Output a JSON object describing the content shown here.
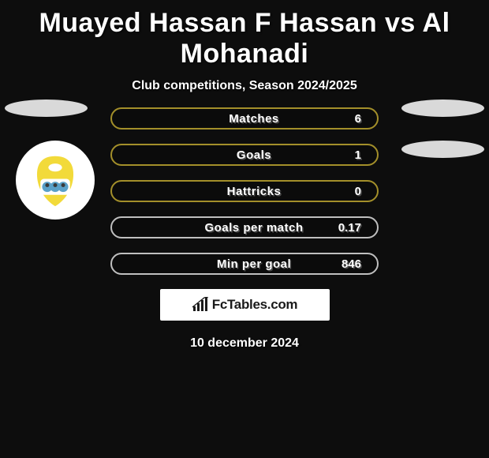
{
  "title": "Muayed Hassan F Hassan vs Al Mohanadi",
  "subtitle": "Club competitions, Season 2024/2025",
  "stats": [
    {
      "label": "Matches",
      "value": "6",
      "border_color": "#a38f2a"
    },
    {
      "label": "Goals",
      "value": "1",
      "border_color": "#a38f2a"
    },
    {
      "label": "Hattricks",
      "value": "0",
      "border_color": "#a38f2a"
    },
    {
      "label": "Goals per match",
      "value": "0.17",
      "border_color": "#bfbfbf"
    },
    {
      "label": "Min per goal",
      "value": "846",
      "border_color": "#bfbfbf"
    }
  ],
  "brand": "FcTables.com",
  "date_text": "10 december 2024",
  "colors": {
    "page_bg": "#0d0d0d",
    "ellipse_fill": "#d9d9d9",
    "badge_bg": "#ffffff",
    "badge_yellow": "#f2da3a",
    "badge_blue": "#5aa0c8",
    "badge_dark": "#3a3a3a",
    "brand_box_bg": "#ffffff",
    "brand_text": "#1a1a1a",
    "text_white": "#ffffff"
  }
}
